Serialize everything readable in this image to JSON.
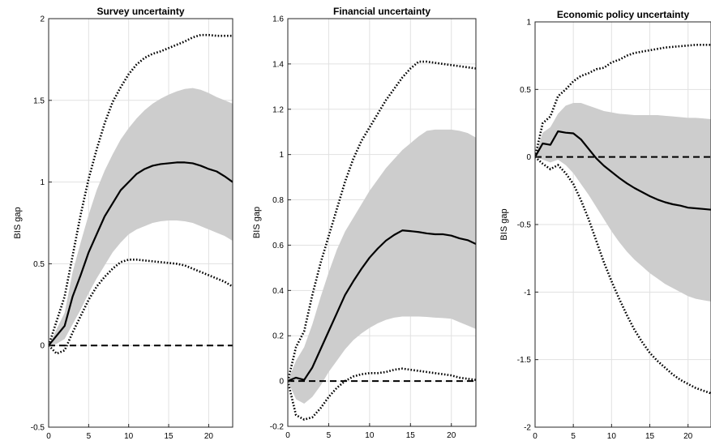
{
  "chart_data": [
    {
      "type": "line",
      "title": "Survey uncertainty",
      "ylabel": "BIS gap",
      "xlabel": "",
      "xlim": [
        0,
        23
      ],
      "ylim": [
        -0.5,
        2
      ],
      "xticks": [
        0,
        5,
        10,
        15,
        20
      ],
      "yticks": [
        -0.5,
        0,
        0.5,
        1,
        1.5,
        2
      ],
      "ytick_labels": [
        "-0.5",
        "0",
        "0.5",
        "1",
        "1.5",
        "2"
      ],
      "grid": true,
      "x": [
        0,
        1,
        2,
        3,
        4,
        5,
        6,
        7,
        8,
        9,
        10,
        11,
        12,
        13,
        14,
        15,
        16,
        17,
        18,
        19,
        20,
        21,
        22,
        23
      ],
      "median": [
        0,
        0.06,
        0.12,
        0.3,
        0.43,
        0.57,
        0.68,
        0.79,
        0.87,
        0.95,
        1.0,
        1.05,
        1.08,
        1.1,
        1.11,
        1.115,
        1.12,
        1.12,
        1.115,
        1.1,
        1.08,
        1.065,
        1.035,
        1.0
      ],
      "band_lower": [
        0,
        0.01,
        0.04,
        0.13,
        0.22,
        0.32,
        0.41,
        0.49,
        0.57,
        0.63,
        0.68,
        0.71,
        0.73,
        0.75,
        0.76,
        0.765,
        0.765,
        0.76,
        0.75,
        0.73,
        0.71,
        0.69,
        0.67,
        0.64
      ],
      "band_upper": [
        0,
        0.1,
        0.2,
        0.45,
        0.63,
        0.8,
        0.95,
        1.07,
        1.17,
        1.26,
        1.33,
        1.39,
        1.44,
        1.48,
        1.51,
        1.535,
        1.555,
        1.57,
        1.575,
        1.565,
        1.545,
        1.52,
        1.5,
        1.48
      ],
      "outer_lower": [
        0,
        -0.05,
        -0.03,
        0.08,
        0.18,
        0.28,
        0.36,
        0.42,
        0.47,
        0.51,
        0.525,
        0.525,
        0.52,
        0.515,
        0.51,
        0.505,
        0.5,
        0.49,
        0.47,
        0.45,
        0.43,
        0.41,
        0.39,
        0.36
      ],
      "outer_upper": [
        0,
        0.15,
        0.3,
        0.55,
        0.8,
        1.02,
        1.2,
        1.36,
        1.49,
        1.58,
        1.66,
        1.72,
        1.76,
        1.785,
        1.8,
        1.82,
        1.84,
        1.86,
        1.885,
        1.9,
        1.9,
        1.895,
        1.895,
        1.895
      ],
      "zero_line": 0
    },
    {
      "type": "line",
      "title": "Financial uncertainty",
      "ylabel": "BIS gap",
      "xlabel": "",
      "xlim": [
        0,
        23
      ],
      "ylim": [
        -0.2,
        1.6
      ],
      "xticks": [
        0,
        5,
        10,
        15,
        20
      ],
      "yticks": [
        -0.2,
        0,
        0.2,
        0.4,
        0.6,
        0.8,
        1,
        1.2,
        1.4,
        1.6
      ],
      "ytick_labels": [
        "-0.2",
        "0",
        "0.2",
        "0.4",
        "0.6",
        "0.8",
        "1",
        "1.2",
        "1.4",
        "1.6"
      ],
      "grid": true,
      "x": [
        0,
        1,
        2,
        3,
        4,
        5,
        6,
        7,
        8,
        9,
        10,
        11,
        12,
        13,
        14,
        15,
        16,
        17,
        18,
        19,
        20,
        21,
        22,
        23
      ],
      "median": [
        0,
        0.015,
        0.005,
        0.06,
        0.14,
        0.22,
        0.3,
        0.38,
        0.44,
        0.495,
        0.545,
        0.585,
        0.62,
        0.645,
        0.665,
        0.662,
        0.658,
        0.652,
        0.648,
        0.648,
        0.642,
        0.63,
        0.622,
        0.605
      ],
      "band_lower": [
        0,
        -0.08,
        -0.1,
        -0.07,
        -0.02,
        0.04,
        0.09,
        0.14,
        0.18,
        0.21,
        0.235,
        0.255,
        0.27,
        0.28,
        0.285,
        0.285,
        0.285,
        0.283,
        0.28,
        0.278,
        0.275,
        0.26,
        0.245,
        0.23
      ],
      "band_upper": [
        0,
        0.09,
        0.15,
        0.25,
        0.37,
        0.48,
        0.58,
        0.66,
        0.72,
        0.78,
        0.84,
        0.89,
        0.94,
        0.98,
        1.02,
        1.05,
        1.08,
        1.105,
        1.11,
        1.11,
        1.11,
        1.105,
        1.095,
        1.075
      ],
      "outer_lower": [
        0,
        -0.15,
        -0.17,
        -0.16,
        -0.12,
        -0.07,
        -0.03,
        0.0,
        0.02,
        0.03,
        0.035,
        0.035,
        0.04,
        0.05,
        0.055,
        0.05,
        0.045,
        0.04,
        0.035,
        0.03,
        0.025,
        0.015,
        0.01,
        0.005
      ],
      "outer_upper": [
        0,
        0.15,
        0.22,
        0.38,
        0.52,
        0.64,
        0.76,
        0.88,
        0.98,
        1.06,
        1.12,
        1.18,
        1.24,
        1.29,
        1.34,
        1.38,
        1.41,
        1.41,
        1.405,
        1.4,
        1.395,
        1.39,
        1.385,
        1.38
      ],
      "zero_line": 0
    },
    {
      "type": "line",
      "title": "Economic policy uncertainty",
      "ylabel": "BIS gap",
      "xlabel": "",
      "xlim": [
        0,
        23
      ],
      "ylim": [
        -2,
        1
      ],
      "xticks": [
        0,
        5,
        10,
        15,
        20
      ],
      "yticks": [
        -2,
        -1.5,
        -1,
        -0.5,
        0,
        0.5,
        1
      ],
      "ytick_labels": [
        "-2",
        "-1.5",
        "-1",
        "-0.5",
        "0",
        "0.5",
        "1"
      ],
      "grid": true,
      "x": [
        0,
        1,
        2,
        3,
        4,
        5,
        6,
        7,
        8,
        9,
        10,
        11,
        12,
        13,
        14,
        15,
        16,
        17,
        18,
        19,
        20,
        21,
        22,
        23
      ],
      "median": [
        0,
        0.1,
        0.09,
        0.19,
        0.18,
        0.175,
        0.13,
        0.06,
        -0.01,
        -0.065,
        -0.11,
        -0.155,
        -0.195,
        -0.23,
        -0.26,
        -0.29,
        -0.315,
        -0.335,
        -0.35,
        -0.36,
        -0.375,
        -0.38,
        -0.385,
        -0.39
      ],
      "band_lower": [
        0,
        -0.02,
        -0.04,
        -0.02,
        -0.06,
        -0.12,
        -0.2,
        -0.28,
        -0.37,
        -0.46,
        -0.55,
        -0.63,
        -0.7,
        -0.76,
        -0.81,
        -0.86,
        -0.9,
        -0.94,
        -0.97,
        -1.0,
        -1.03,
        -1.05,
        -1.06,
        -1.07
      ],
      "band_upper": [
        0,
        0.18,
        0.22,
        0.32,
        0.38,
        0.4,
        0.4,
        0.38,
        0.36,
        0.34,
        0.33,
        0.32,
        0.315,
        0.31,
        0.31,
        0.31,
        0.31,
        0.305,
        0.3,
        0.295,
        0.29,
        0.29,
        0.285,
        0.28
      ],
      "outer_lower": [
        0,
        -0.05,
        -0.09,
        -0.06,
        -0.12,
        -0.2,
        -0.32,
        -0.46,
        -0.62,
        -0.78,
        -0.92,
        -1.05,
        -1.17,
        -1.28,
        -1.37,
        -1.45,
        -1.51,
        -1.56,
        -1.61,
        -1.65,
        -1.68,
        -1.71,
        -1.73,
        -1.75
      ],
      "outer_upper": [
        0,
        0.25,
        0.3,
        0.45,
        0.5,
        0.56,
        0.6,
        0.62,
        0.65,
        0.66,
        0.7,
        0.72,
        0.75,
        0.77,
        0.78,
        0.79,
        0.8,
        0.81,
        0.815,
        0.82,
        0.825,
        0.83,
        0.83,
        0.83
      ],
      "zero_line": 0
    }
  ]
}
